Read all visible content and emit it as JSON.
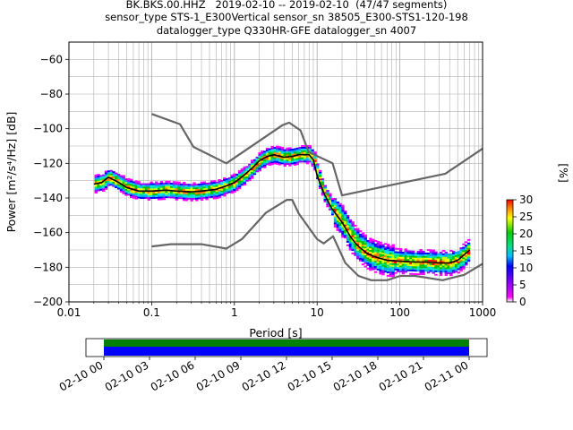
{
  "titles": {
    "line1": "BK.BKS.00.HHZ   2019-02-10 -- 2019-02-10  (47/47 segments)",
    "line2": "sensor_type STS-1_E300Vertical sensor_sn 38505_E300-STS1-120-198",
    "line3": "datalogger_type Q330HR-GFE datalogger_sn 4007"
  },
  "chart_data": {
    "type": "heatmap",
    "xscale": "log",
    "xlabel": "Period [s]",
    "ylabel": "Power [m²/s⁴/Hz] [dB]",
    "xlim": [
      0.01,
      1000
    ],
    "ylim": [
      -200,
      -50
    ],
    "x_ticks": [
      "0.01",
      "0.1",
      "1",
      "10",
      "100",
      "1000"
    ],
    "y_ticks": [
      "−200",
      "−180",
      "−160",
      "−140",
      "−120",
      "−100",
      "−80",
      "−60"
    ],
    "grid": true,
    "colorbar": {
      "label": "[%]",
      "ticks": [
        "0",
        "5",
        "10",
        "15",
        "20",
        "25",
        "30"
      ],
      "range": [
        0,
        30
      ]
    },
    "noise_model_high": {
      "x": [
        0.1,
        0.22,
        0.32,
        0.8,
        3.8,
        4.6,
        6.3,
        7.9,
        15.4,
        20,
        354.8,
        1000
      ],
      "y": [
        -91.5,
        -97.4,
        -110.5,
        -120,
        -98,
        -96.5,
        -101,
        -113.5,
        -120,
        -138.5,
        -126,
        -111.5
      ]
    },
    "noise_model_low": {
      "x": [
        0.1,
        0.17,
        0.4,
        0.8,
        1.24,
        2.4,
        4.3,
        5.0,
        6.0,
        10,
        12,
        15.6,
        21.9,
        31.6,
        45,
        70,
        101,
        154,
        328,
        600,
        1000
      ],
      "y": [
        -168,
        -166.7,
        -166.7,
        -169.2,
        -163.7,
        -148.6,
        -141.1,
        -141.1,
        -149,
        -163.8,
        -166.2,
        -162.1,
        -177.5,
        -185,
        -187.5,
        -187.5,
        -185,
        -185,
        -187.5,
        -184.4,
        -178
      ]
    },
    "mean_curve": {
      "x": [
        0.02,
        0.025,
        0.03,
        0.04,
        0.05,
        0.07,
        0.1,
        0.15,
        0.2,
        0.3,
        0.4,
        0.6,
        0.8,
        1.0,
        1.3,
        1.7,
        2.0,
        2.5,
        3.0,
        4.0,
        5.0,
        6.0,
        7.0,
        8.0,
        9.0,
        10,
        12,
        15,
        20,
        25,
        30,
        40,
        50,
        70,
        100,
        150,
        200,
        300,
        400,
        500,
        700
      ],
      "y": [
        -132,
        -131,
        -128,
        -131,
        -134,
        -136,
        -136,
        -135.5,
        -136,
        -136.5,
        -136,
        -135,
        -133,
        -131,
        -127,
        -122,
        -118.5,
        -116,
        -115,
        -116.5,
        -116,
        -115,
        -115,
        -115,
        -118,
        -127,
        -137,
        -146,
        -154,
        -162,
        -167,
        -172,
        -174,
        -176,
        -176.5,
        -177,
        -177,
        -177.5,
        -177.5,
        -176,
        -170
      ]
    },
    "time_axis": {
      "ticks": [
        "02-10 00",
        "02-10 03",
        "02-10 06",
        "02-10 09",
        "02-10 12",
        "02-10 15",
        "02-10 18",
        "02-10 21",
        "02-11 00"
      ],
      "coverage": [
        {
          "color": "#008000"
        },
        {
          "color": "#0000ff"
        }
      ]
    },
    "colors": {
      "noise_model": "#666666",
      "mean": "#000000",
      "grid": "#b0b0b0"
    }
  }
}
